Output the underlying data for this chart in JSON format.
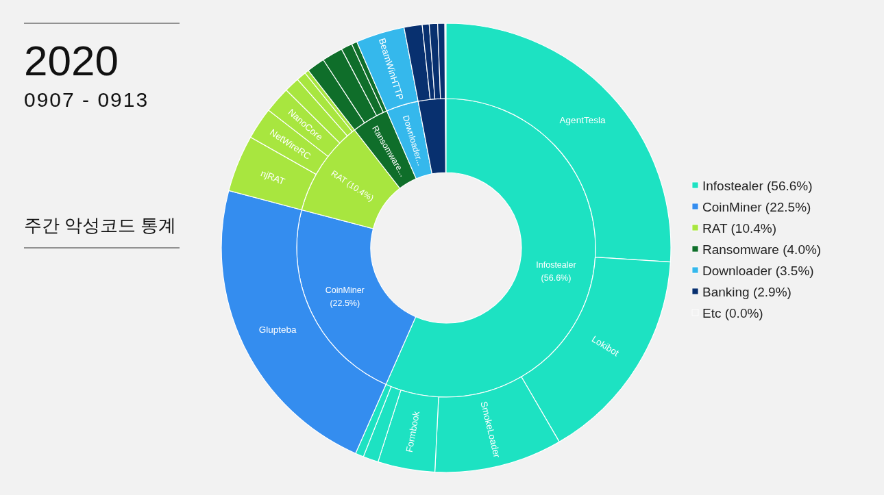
{
  "chart_data": [
    {
      "type": "donut",
      "title": "2020",
      "subtitle": "0907 - 0913",
      "annotations": [
        "주간 악성코드 통계"
      ],
      "categories": [
        "Infostealer (56.6%)",
        "CoinMiner (22.5%)",
        "RAT (10.4%)",
        "Ransomware (4.0%)",
        "Downloader (3.5%)",
        "Banking (2.9%)",
        "Etc (0.0%)"
      ],
      "values": [
        56.6,
        22.5,
        10.4,
        4.0,
        3.5,
        2.9,
        0.0
      ],
      "colors": [
        "#1de2c2",
        "#348def",
        "#a8e63f",
        "#0f6e2a",
        "#35b8ec",
        "#08306f",
        "#f2f2f2"
      ],
      "value_labels": [
        "Infostealer (56.6%)",
        "CoinMiner (22.5%)",
        "RAT (10.4%)",
        "Ransomware...",
        "Downloader...",
        null,
        null
      ],
      "legend": "right"
    },
    {
      "type": "donut",
      "categories": [
        "AgentTesla",
        "Lokibot",
        "SmokeLoader",
        "Formbook",
        null,
        null,
        "Glupteba",
        "njRAT",
        "NetWireRC",
        "NanoCore",
        null,
        null,
        null,
        null,
        null,
        null,
        null,
        "BeamWinHTTP",
        null,
        null,
        null,
        null
      ],
      "values": [
        26.0,
        15.6,
        9.2,
        4.1,
        1.1,
        0.6,
        22.5,
        4.1,
        2.3,
        1.9,
        1.1,
        0.7,
        0.3,
        1.3,
        1.5,
        0.8,
        0.4,
        3.5,
        1.3,
        0.5,
        0.6,
        0.5
      ],
      "colors": [
        "#1de2c2",
        "#1de2c2",
        "#1de2c2",
        "#1de2c2",
        "#1de2c2",
        "#1de2c2",
        "#348def",
        "#a8e63f",
        "#a8e63f",
        "#a8e63f",
        "#a8e63f",
        "#a8e63f",
        "#a8e63f",
        "#0f6e2a",
        "#0f6e2a",
        "#0f6e2a",
        "#0f6e2a",
        "#35b8ec",
        "#08306f",
        "#08306f",
        "#08306f",
        "#08306f"
      ]
    }
  ]
}
